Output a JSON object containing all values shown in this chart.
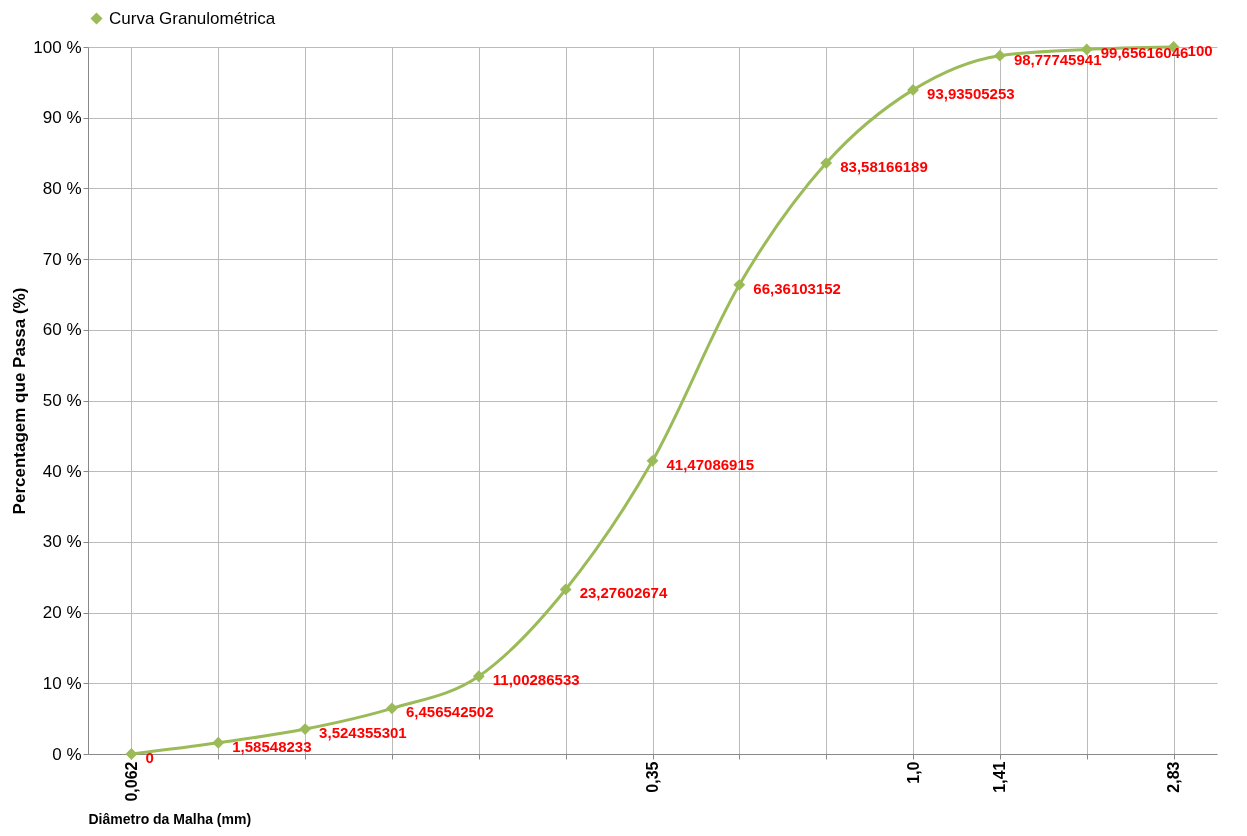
{
  "chart_data": {
    "type": "line",
    "xlabel": "Diâmetro da Malha (mm)",
    "ylabel": "Percentagem que Passa (%)",
    "categories": [
      "0,062",
      null,
      null,
      null,
      null,
      null,
      "0,35",
      null,
      null,
      "1,0",
      "1,41",
      null,
      "2,83"
    ],
    "series": [
      {
        "name": "Curva Granulométrica",
        "color": "#9bbb59",
        "values": [
          0,
          1.58548233,
          3.524355301,
          6.456542502,
          11.00286533,
          23.27602674,
          41.47086915,
          66.36103152,
          83.58166189,
          93.93505253,
          98.77745941,
          99.65616046,
          100
        ],
        "value_labels": [
          "0",
          "1,58548233",
          "3,524355301",
          "6,456542502",
          "11,00286533",
          "23,27602674",
          "41,47086915",
          "66,36103152",
          "83,58166189",
          "93,93505253",
          "98,77745941",
          "99,65616046",
          "100"
        ]
      }
    ],
    "ylim": [
      0,
      100
    ],
    "yticks": [
      {
        "value": 0,
        "label": "0 %"
      },
      {
        "value": 10,
        "label": "10 %"
      },
      {
        "value": 20,
        "label": "20 %"
      },
      {
        "value": 30,
        "label": "30 %"
      },
      {
        "value": 40,
        "label": "40 %"
      },
      {
        "value": 50,
        "label": "50 %"
      },
      {
        "value": 60,
        "label": "60 %"
      },
      {
        "value": 70,
        "label": "70 %"
      },
      {
        "value": 80,
        "label": "80 %"
      },
      {
        "value": 90,
        "label": "90 %"
      },
      {
        "value": 100,
        "label": "100 %"
      }
    ],
    "grid": true,
    "legend": "top",
    "marker": "diamond",
    "line_style": "solid"
  }
}
